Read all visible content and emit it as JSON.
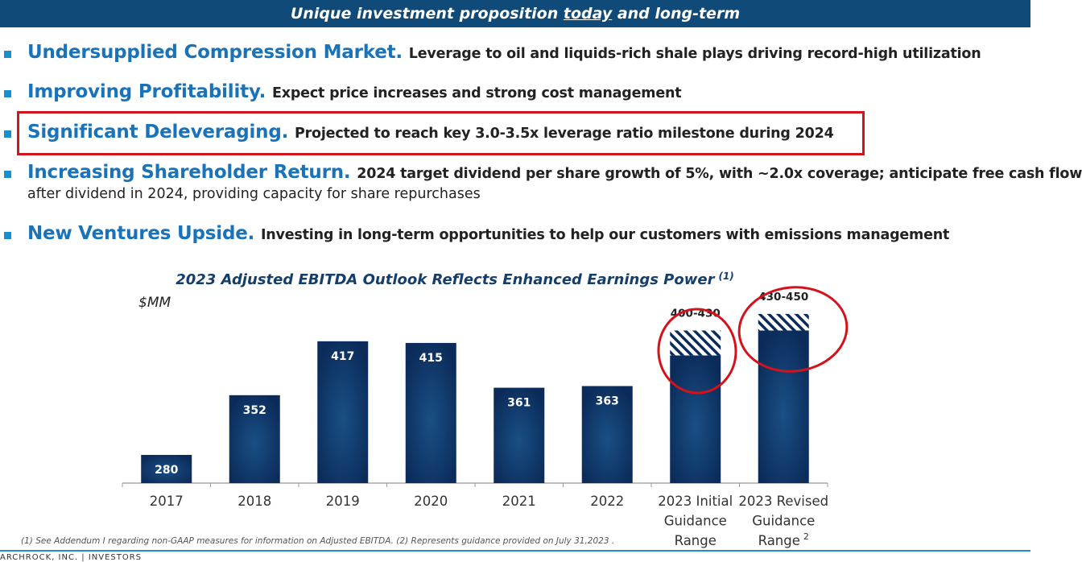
{
  "header": {
    "title_before": "Unique investment proposition ",
    "title_underlined": "today",
    "title_after": " and long-term"
  },
  "bullets": [
    {
      "heading": "Undersupplied Compression Market.",
      "text": "Leverage to oil and liquids-rich shale plays driving record-high utilization",
      "text2": ""
    },
    {
      "heading": "Improving Profitability.",
      "text": "Expect price increases and strong cost management",
      "text2": ""
    },
    {
      "heading": "Significant Deleveraging.",
      "text": "Projected to reach key 3.0-3.5x leverage ratio milestone during 2024",
      "text2": ""
    },
    {
      "heading": "Increasing Shareholder Return.",
      "text": "2024 target dividend per share growth of 5%, with ~2.0x coverage; anticipate free cash flow",
      "text2": "after dividend in 2024, providing capacity for share repurchases"
    },
    {
      "heading": "New Ventures Upside.",
      "text": "Investing in long-term opportunities to help our customers with emissions management",
      "text2": ""
    }
  ],
  "chart_data": {
    "type": "bar",
    "title": "2023 Adjusted EBITDA Outlook Reflects Enhanced Earnings Power",
    "title_superscript": "(1)",
    "ylabel": "$MM",
    "ylim": [
      260,
      460
    ],
    "grid": false,
    "legend": "none",
    "categories": [
      [
        "2017"
      ],
      [
        "2018"
      ],
      [
        "2019"
      ],
      [
        "2020"
      ],
      [
        "2021"
      ],
      [
        "2022"
      ],
      [
        "2023 Initial",
        "Guidance",
        "Range"
      ],
      [
        "2023 Revised",
        "Guidance",
        "Range"
      ]
    ],
    "category_superscripts": [
      "",
      "",
      "",
      "",
      "",
      "",
      "",
      "2"
    ],
    "values": [
      280,
      352,
      417,
      415,
      361,
      363,
      400,
      430
    ],
    "range_high": [
      null,
      null,
      null,
      null,
      null,
      null,
      430,
      450
    ],
    "labels": [
      "280",
      "352",
      "417",
      "415",
      "361",
      "363",
      "400-430",
      "430-450"
    ],
    "circled": [
      6,
      7
    ],
    "colors": {
      "bar": "#0b2c5a",
      "bar_highlight": "#1a4f85",
      "hatch": "#0b2c5a",
      "circle": "#d4121b"
    }
  },
  "footnote": "(1) See Addendum I regarding non-GAAP measures for information on Adjusted EBITDA. (2) Represents guidance provided on July 31,2023 .",
  "footer": "ARCHROCK, INC. | INVESTORS"
}
